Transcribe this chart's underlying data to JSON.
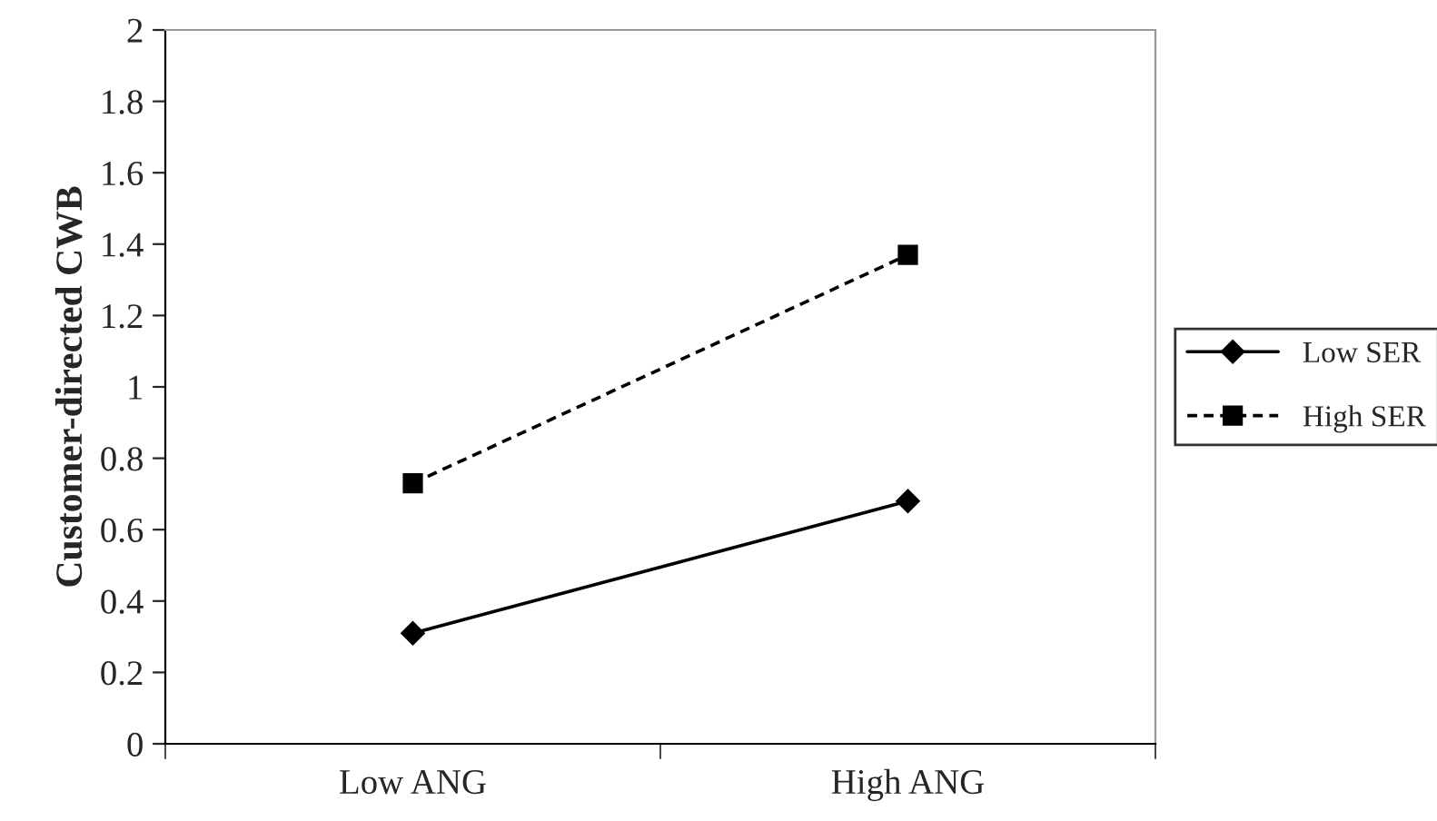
{
  "chart_data": {
    "type": "line",
    "ylabel": "Customer-directed CWB",
    "categories": [
      "Low ANG",
      "High ANG"
    ],
    "series": [
      {
        "name": "Low SER",
        "color": "#000000",
        "values": [
          0.31,
          0.68
        ],
        "marker": "diamond",
        "line_style": "solid"
      },
      {
        "name": "High SER",
        "color": "#000000",
        "values": [
          0.73,
          1.37
        ],
        "marker": "square",
        "line_style": "dashed"
      }
    ],
    "ylim": [
      0,
      2
    ],
    "yticks": [
      0,
      0.2,
      0.4,
      0.6,
      0.8,
      1,
      1.2,
      1.4,
      1.6,
      1.8,
      2
    ],
    "grid": false,
    "legend": "right"
  }
}
